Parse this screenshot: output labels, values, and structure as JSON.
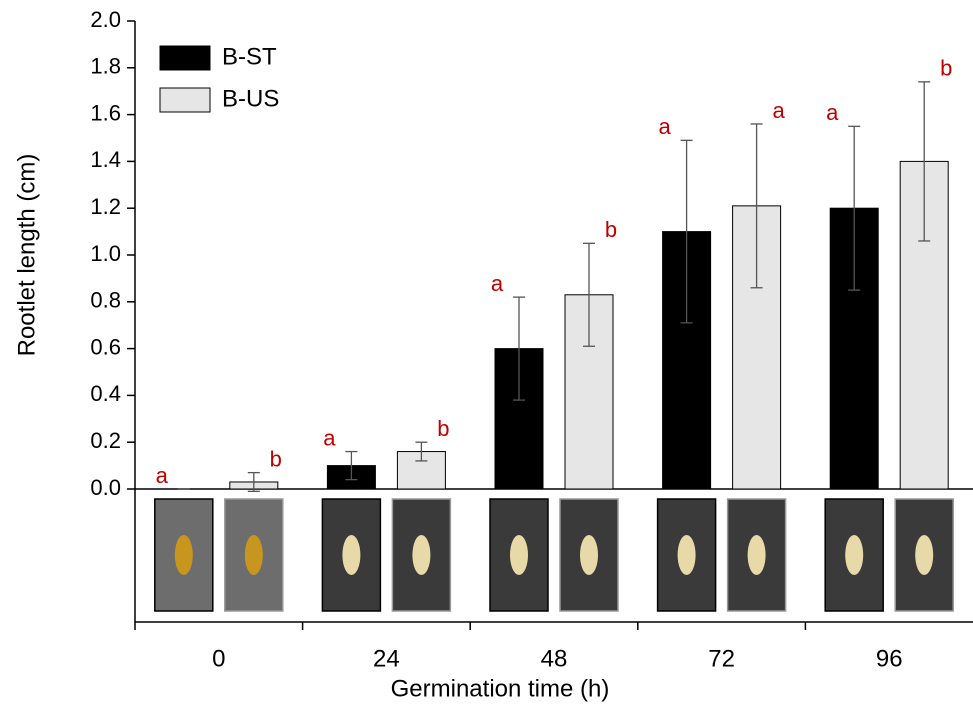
{
  "chart_data": {
    "type": "bar",
    "x_label": "Germination time (h)",
    "y_label": "Rootlet length (cm)",
    "categories": [
      "0",
      "24",
      "48",
      "72",
      "96"
    ],
    "series": [
      {
        "name": "B-ST",
        "color": "#000000",
        "values": [
          0,
          0.1,
          0.6,
          1.1,
          1.2
        ],
        "errors": [
          0,
          0.06,
          0.22,
          0.39,
          0.35
        ],
        "letters": [
          "a",
          "a",
          "a",
          "a",
          "a"
        ]
      },
      {
        "name": "B-US",
        "color": "#e6e6e6",
        "values": [
          0.03,
          0.16,
          0.83,
          1.21,
          1.4
        ],
        "errors": [
          0.04,
          0.04,
          0.22,
          0.35,
          0.34
        ],
        "letters": [
          "b",
          "b",
          "b",
          "a",
          "b"
        ]
      }
    ],
    "ylim": [
      0,
      2
    ],
    "yticks": [
      {
        "value": 0,
        "label": "0.0"
      },
      {
        "value": 0.2,
        "label": "0.2"
      },
      {
        "value": 0.4,
        "label": "0.4"
      },
      {
        "value": 0.6,
        "label": "0.6"
      },
      {
        "value": 0.8,
        "label": "0.8"
      },
      {
        "value": 1.0,
        "label": "1.0"
      },
      {
        "value": 1.2,
        "label": "1.2"
      },
      {
        "value": 1.4,
        "label": "1.4"
      },
      {
        "value": 1.6,
        "label": "1.6"
      },
      {
        "value": 1.8,
        "label": "1.8"
      },
      {
        "value": 2,
        "label": "2.0"
      }
    ],
    "letter_color": "#c00000",
    "legend": "upper left"
  }
}
